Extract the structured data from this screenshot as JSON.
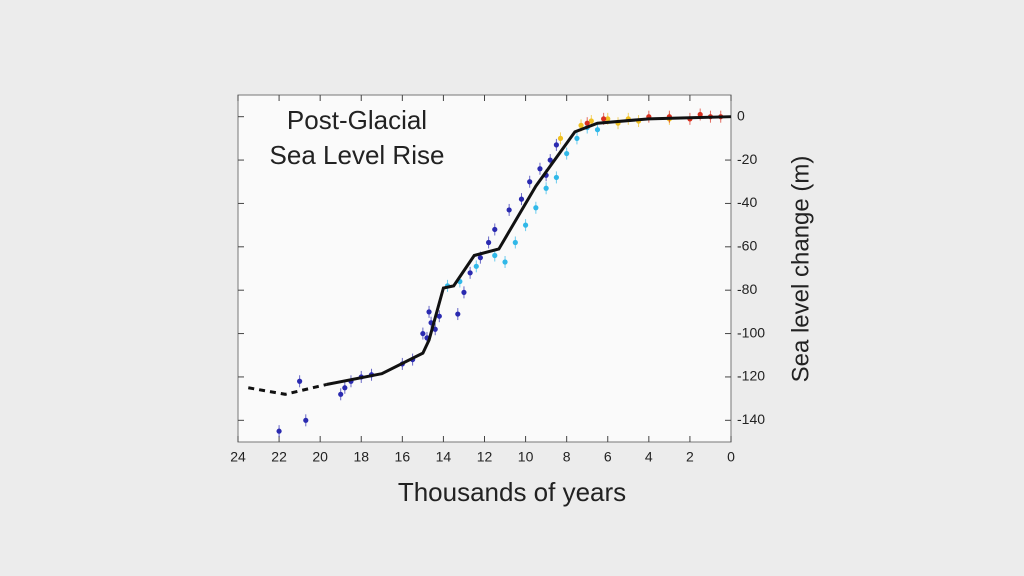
{
  "chart_data": {
    "type": "scatter",
    "title": [
      "Post-Glacial",
      "Sea Level Rise"
    ],
    "xlabel": "Thousands of years",
    "ylabel": "Sea level change (m)",
    "xlim": [
      24,
      0
    ],
    "ylim": [
      -150,
      10
    ],
    "xticks": [
      24,
      22,
      20,
      18,
      16,
      14,
      12,
      10,
      8,
      6,
      4,
      2,
      0
    ],
    "yticks": [
      0,
      -20,
      -40,
      -60,
      -80,
      -100,
      -120,
      -140
    ],
    "line_color": "#111111",
    "lines": [
      {
        "dashed": true,
        "x": [
          23.5,
          21.7,
          19.7
        ],
        "values": [
          -125,
          -128,
          -123.5
        ]
      },
      {
        "dashed": false,
        "x": [
          19.7,
          17,
          15,
          14.7,
          14,
          13.5,
          12.5,
          11.3,
          9.5,
          7.6,
          6.5,
          4,
          2,
          0
        ],
        "values": [
          -123.5,
          -118.5,
          -109,
          -103,
          -79,
          -78,
          -64,
          -61,
          -32,
          -7,
          -3,
          -1,
          -0.5,
          0
        ]
      }
    ],
    "points": {
      "x": [
        22,
        20.7,
        21,
        19,
        18.5,
        18,
        17.5,
        18.8,
        16,
        15.5,
        14.8,
        15,
        14.6,
        14.4,
        14.7,
        14.2,
        13.3,
        13,
        12.7,
        12.2,
        11.8,
        11.5,
        10.8,
        10.2,
        9.8,
        9.3,
        9,
        8.8,
        8.5,
        13.8,
        13.2,
        12.4,
        11.5,
        11,
        10.5,
        10,
        9.5,
        9,
        8.5,
        8,
        7.5,
        7,
        6.5,
        8.3,
        7.3,
        6.8,
        6,
        5.5,
        5,
        4.5,
        3,
        7,
        6.2,
        4,
        3,
        2,
        1,
        0.5,
        1.5
      ],
      "values": [
        -145,
        -140,
        -122,
        -128,
        -122,
        -120,
        -119,
        -125,
        -114,
        -112,
        -102,
        -100,
        -95,
        -98,
        -90,
        -92,
        -91,
        -81,
        -72,
        -65,
        -58,
        -52,
        -43,
        -38,
        -30,
        -24,
        -27,
        -20,
        -13,
        -78,
        -76,
        -69,
        -64,
        -67,
        -58,
        -50,
        -42,
        -33,
        -28,
        -17,
        -10,
        -5,
        -6,
        -10,
        -4,
        -2,
        -1,
        -3,
        -1,
        -2,
        -1,
        -3,
        -1,
        0,
        0,
        -1,
        0,
        0,
        1
      ],
      "colors": [
        "#2a2ab0",
        "#2a2ab0",
        "#2a2ab0",
        "#2a2ab0",
        "#2a2ab0",
        "#2a2ab0",
        "#2a2ab0",
        "#2a2ab0",
        "#2a2ab0",
        "#2a2ab0",
        "#2a2ab0",
        "#2a2ab0",
        "#2a2ab0",
        "#2a2ab0",
        "#2a2ab0",
        "#2a2ab0",
        "#2a2ab0",
        "#2a2ab0",
        "#2a2ab0",
        "#2a2ab0",
        "#2a2ab0",
        "#2a2ab0",
        "#2a2ab0",
        "#2a2ab0",
        "#2a2ab0",
        "#2a2ab0",
        "#2a2ab0",
        "#2a2ab0",
        "#2a2ab0",
        "#30b8e8",
        "#30b8e8",
        "#30b8e8",
        "#30b8e8",
        "#30b8e8",
        "#30b8e8",
        "#30b8e8",
        "#30b8e8",
        "#30b8e8",
        "#30b8e8",
        "#30b8e8",
        "#30b8e8",
        "#30b8e8",
        "#30b8e8",
        "#f0c020",
        "#f0c020",
        "#f0c020",
        "#f0c020",
        "#f0c020",
        "#f0c020",
        "#f0c020",
        "#f0c020",
        "#d83020",
        "#d83020",
        "#d83020",
        "#d83020",
        "#d83020",
        "#d83020",
        "#d83020",
        "#d83020"
      ]
    }
  }
}
